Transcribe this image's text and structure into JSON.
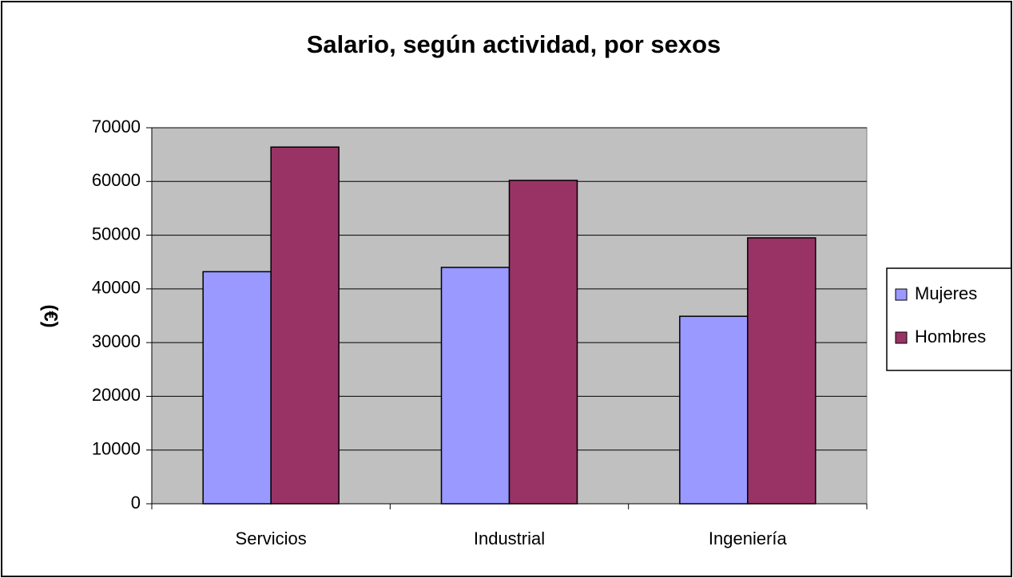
{
  "chart_data": {
    "type": "bar",
    "title": "Salario, según actividad, por sexos",
    "ylabel": "(€)",
    "categories": [
      "Servicios",
      "Industrial",
      "Ingeniería"
    ],
    "series": [
      {
        "name": "Mujeres",
        "color": "#9999ff",
        "values": [
          43200,
          44000,
          34900
        ]
      },
      {
        "name": "Hombres",
        "color": "#993366",
        "values": [
          66400,
          60200,
          49500
        ]
      }
    ],
    "ylim": [
      0,
      70000
    ],
    "yticks": [
      0,
      10000,
      20000,
      30000,
      40000,
      50000,
      60000,
      70000
    ],
    "grid": true,
    "legend": "right"
  }
}
